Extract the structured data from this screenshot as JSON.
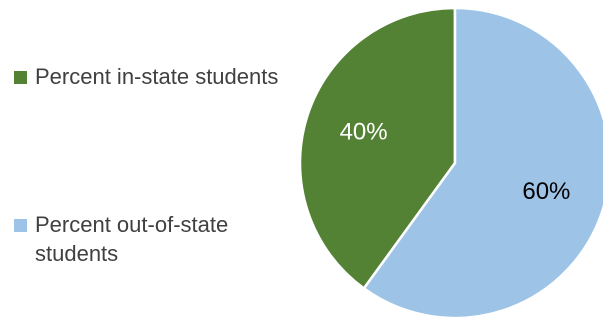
{
  "chart_data": {
    "type": "pie",
    "title": "",
    "slices": [
      {
        "label": "Percent in-state students",
        "value": 40,
        "display": "40%",
        "color": "#548235",
        "label_color": "#ffffff"
      },
      {
        "label": "Percent out-of-state students",
        "value": 60,
        "display": "60%",
        "color": "#9dc3e6",
        "label_color": "#000000"
      }
    ],
    "legend_position": "left",
    "start_angle_deg": 0,
    "direction": "counterclockwise"
  }
}
